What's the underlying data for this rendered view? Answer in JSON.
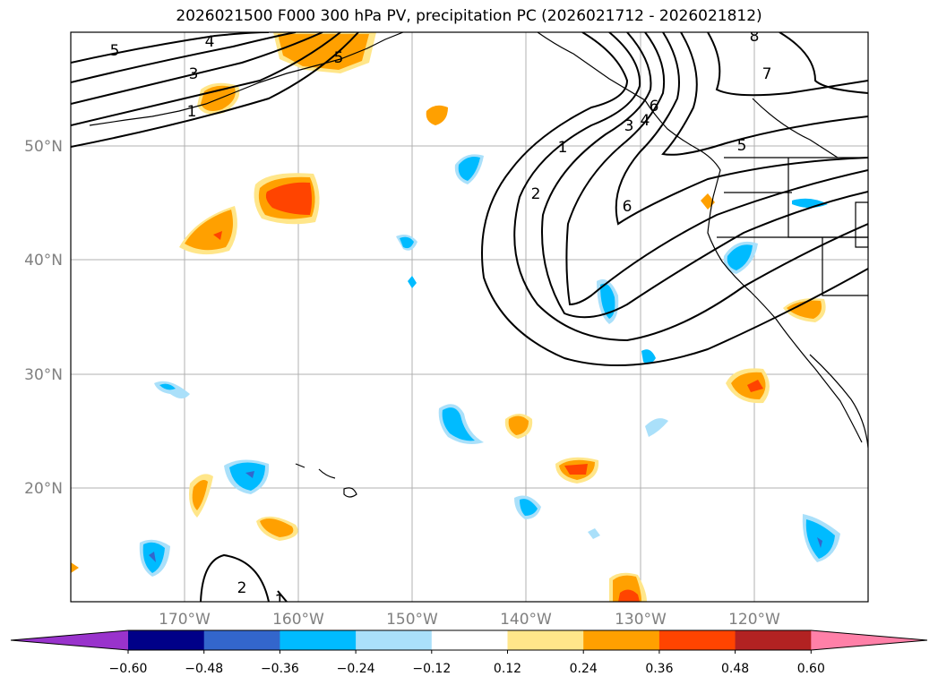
{
  "title": "2026021500 F000 300 hPa PV, precipitation PC (2026021712 - 2026021812)",
  "map": {
    "x_ticks": [
      "170°W",
      "160°W",
      "150°W",
      "140°W",
      "130°W",
      "120°W"
    ],
    "y_ticks": [
      "50°N",
      "40°N",
      "30°N",
      "20°N"
    ],
    "contour_labels": [
      "5",
      "4",
      "3",
      "1",
      "1",
      "2",
      "6",
      "3",
      "4",
      "5",
      "6",
      "7",
      "8",
      "5",
      "2",
      "1"
    ]
  },
  "colorbar": {
    "ticks": [
      "−0.60",
      "−0.48",
      "−0.36",
      "−0.24",
      "−0.12",
      "0.12",
      "0.24",
      "0.36",
      "0.48",
      "0.60"
    ],
    "colors": [
      "#9933cc",
      "#000088",
      "#3366cc",
      "#00bbff",
      "#aae0fa",
      "#ffffff",
      "#ffe68a",
      "#ffa000",
      "#ff4400",
      "#b22222",
      "#ff80a8"
    ]
  }
}
